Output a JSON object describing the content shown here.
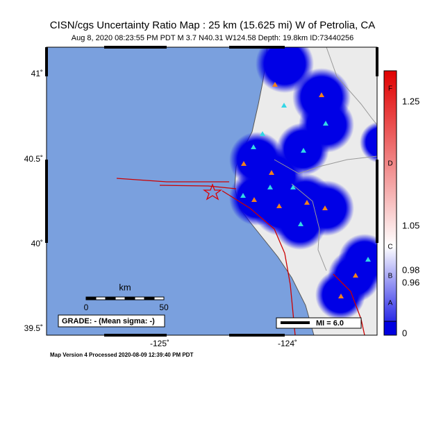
{
  "header": {
    "title": "CISN/cgs Uncertainty Ratio Map : 25 km (15.625 mi) W of Petrolia, CA",
    "subtitle": "Aug  8, 2020 08:23:55 PM PDT   M 3.7   N40.31 W124.58   Depth: 19.8km   ID:73440256"
  },
  "map": {
    "lat_labels": [
      "41˚",
      "40.5˚",
      "40˚",
      "39.5˚"
    ],
    "lon_labels": [
      "-125˚",
      "-124˚"
    ],
    "scale_bar": {
      "unit": "km",
      "start": "0",
      "end": "50"
    },
    "grade": "GRADE: - (Mean sigma: -)",
    "mi_legend": "MI = 6.0"
  },
  "colorbar": {
    "letters": [
      "F",
      "D",
      "C",
      "B",
      "A"
    ],
    "values": [
      "1.25",
      "1.05",
      "0.98",
      "0.96",
      "0"
    ]
  },
  "footer": "Map Version 4 Processed 2020-08-09 12:39:40 PM PDT"
}
